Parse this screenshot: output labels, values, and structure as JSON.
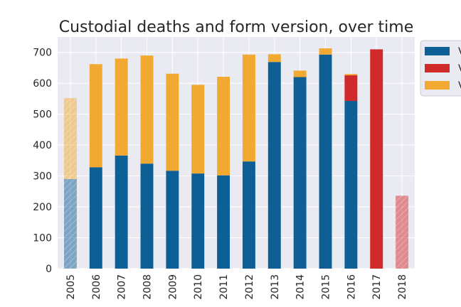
{
  "chart_data": {
    "type": "bar",
    "stacked": true,
    "title": "Custodial deaths and form version, over time",
    "xlabel": "",
    "ylabel": "",
    "categories": [
      "2005",
      "2006",
      "2007",
      "2008",
      "2009",
      "2010",
      "2011",
      "2012",
      "2013",
      "2014",
      "2015",
      "2016",
      "2017",
      "2018"
    ],
    "partial_years": [
      "2005",
      "2018"
    ],
    "ylim": [
      0,
      750
    ],
    "yticks": [
      0,
      100,
      200,
      300,
      400,
      500,
      600,
      700
    ],
    "grid": true,
    "legend_position": "outside-top-right",
    "series": [
      {
        "legend_label": "V",
        "color": "#0e5f96",
        "values": [
          290,
          328,
          366,
          340,
          317,
          308,
          302,
          347,
          669,
          620,
          693,
          543,
          0,
          0
        ]
      },
      {
        "legend_label": "V",
        "color": "#d12a2a",
        "values": [
          0,
          0,
          0,
          0,
          0,
          0,
          0,
          0,
          0,
          0,
          0,
          83,
          710,
          236
        ]
      },
      {
        "legend_label": "V",
        "color": "#f2a931",
        "values": [
          262,
          334,
          314,
          350,
          314,
          287,
          319,
          346,
          25,
          21,
          20,
          4,
          0,
          0
        ]
      }
    ]
  }
}
